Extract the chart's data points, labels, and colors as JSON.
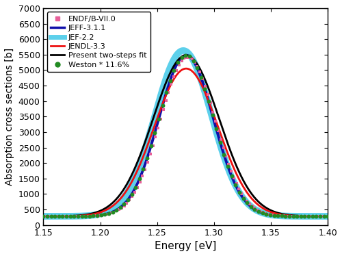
{
  "xlim": [
    1.15,
    1.4
  ],
  "ylim": [
    0,
    7000
  ],
  "xlabel": "Energy [eV]",
  "ylabel": "Absorption cross sections [b]",
  "xticks": [
    1.15,
    1.2,
    1.25,
    1.3,
    1.35,
    1.4
  ],
  "yticks": [
    0,
    500,
    1000,
    1500,
    2000,
    2500,
    3000,
    3500,
    4000,
    4500,
    5000,
    5500,
    6000,
    6500,
    7000
  ],
  "baseline": 280,
  "color_endf": "#E8609A",
  "color_jeff311": "#1010AA",
  "color_jef22": "#40C8E8",
  "color_jendl33": "#EE1111",
  "color_two_steps": "#000000",
  "color_weston": "#228B22",
  "legend_labels": [
    "ENDF/B-VII.0",
    "JEFF-3.1.1",
    "JEF-2.2",
    "JENDL-3.3",
    "Present two-steps fit",
    "Weston * 11.6%"
  ],
  "figsize": [
    5.0,
    3.74
  ],
  "dpi": 100,
  "curves": {
    "jeff311": {
      "E0": 1.2755,
      "peak": 5480,
      "sigma": 0.024
    },
    "jef22": {
      "E0": 1.273,
      "peak": 5630,
      "sigma": 0.025
    },
    "jendl33": {
      "E0": 1.2755,
      "peak": 5050,
      "sigma": 0.028
    },
    "two_steps": {
      "E0": 1.2755,
      "peak": 5480,
      "sigma": 0.029
    },
    "endf": {
      "E0": 1.277,
      "peak": 5420,
      "sigma": 0.024
    },
    "weston": {
      "E0": 1.2755,
      "peak": 5480,
      "sigma": 0.024
    }
  },
  "endf_n_points": 110,
  "weston_n_points": 75
}
